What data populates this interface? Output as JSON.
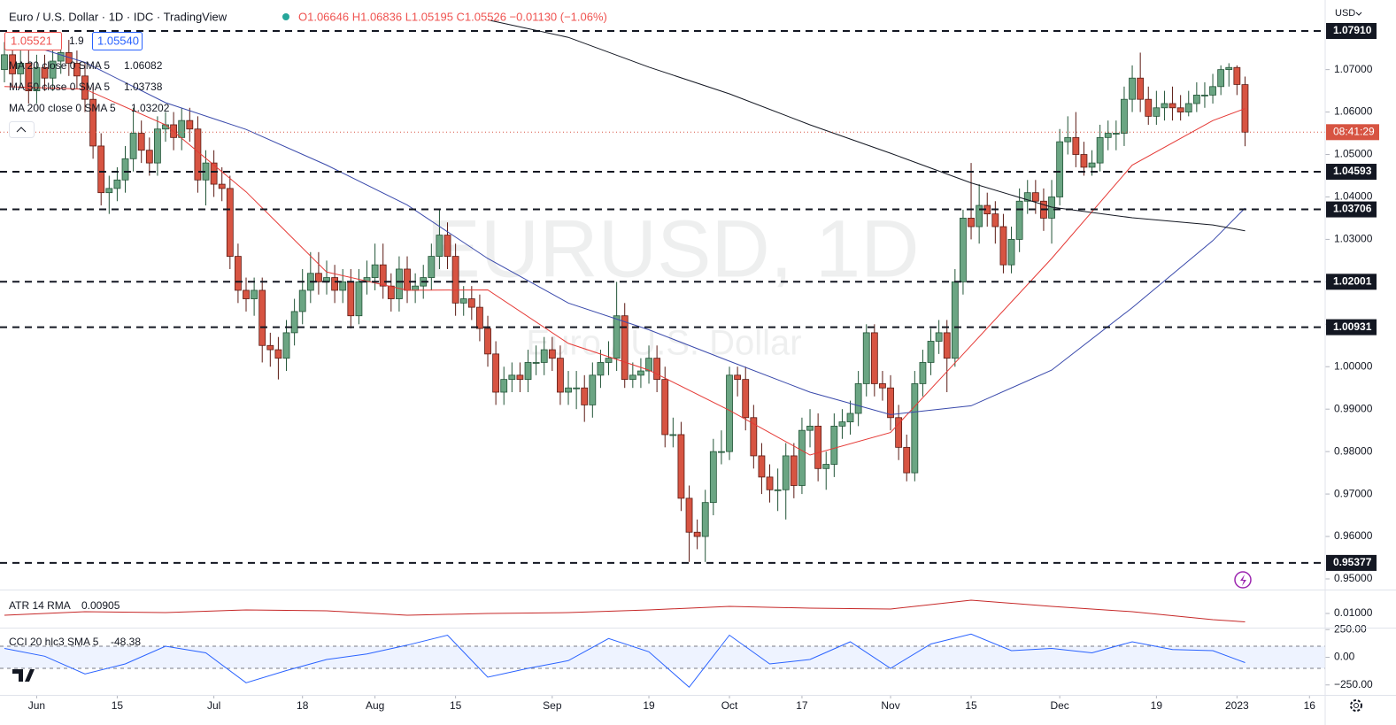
{
  "header": {
    "symbol": "Euro / U.S. Dollar · 1D · IDC · TradingView",
    "ohlc": "O1.06646 H1.06836 L1.05195 C1.05526 −0.01130 (−1.06%)",
    "bid": "1.05521",
    "spread": "1.9",
    "ask": "1.05540",
    "currency": "USD",
    "watermark": "EURUSD, 1D",
    "watermark_sub": "Euro / U.S. Dollar"
  },
  "chart_data": [
    {
      "type": "candlestick",
      "xlim": [
        -0.55,
        163.95
      ],
      "ylim": [
        0.9477,
        1.0864
      ],
      "up_color": "#6ba583",
      "down_color": "#d75442",
      "yticks": [
        {
          "value": 1.07,
          "label": "1.07000"
        },
        {
          "value": 1.06,
          "label": "1.06000"
        },
        {
          "value": 1.05,
          "label": "1.05000"
        },
        {
          "value": 1.04,
          "label": "1.04000"
        },
        {
          "value": 1.03,
          "label": "1.03000"
        },
        {
          "value": 1.02,
          "label": "1.02000"
        },
        {
          "value": 1.01,
          "label": "1.01000"
        },
        {
          "value": 1.0,
          "label": "1.00000"
        },
        {
          "value": 0.99,
          "label": "0.99000"
        },
        {
          "value": 0.98,
          "label": "0.98000"
        },
        {
          "value": 0.97,
          "label": "0.97000"
        },
        {
          "value": 0.96,
          "label": "0.96000"
        },
        {
          "value": 0.95,
          "label": "0.95000"
        }
      ],
      "xticks": [
        {
          "value": 4,
          "label": "Jun"
        },
        {
          "value": 14,
          "label": "15"
        },
        {
          "value": 26,
          "label": "Jul"
        },
        {
          "value": 37,
          "label": "18"
        },
        {
          "value": 46,
          "label": "Aug"
        },
        {
          "value": 56,
          "label": "15"
        },
        {
          "value": 68,
          "label": "Sep"
        },
        {
          "value": 80,
          "label": "19"
        },
        {
          "value": 90,
          "label": "Oct"
        },
        {
          "value": 99,
          "label": "17"
        },
        {
          "value": 110,
          "label": "Nov"
        },
        {
          "value": 120,
          "label": "15"
        },
        {
          "value": 131,
          "label": "Dec"
        },
        {
          "value": 143,
          "label": "19"
        },
        {
          "value": 153,
          "label": "2023"
        },
        {
          "value": 162,
          "label": "16"
        }
      ],
      "levels": [
        {
          "value": 1.0791,
          "label": "1.07910"
        },
        1.04593,
        1.03706,
        1.02001,
        1.00931,
        0.95377
      ],
      "countdown": "08:41:29",
      "open": [
        1.07,
        1.0735,
        1.069,
        1.0715,
        1.065,
        1.0705,
        1.068,
        1.072,
        1.074,
        1.0715,
        1.0685,
        1.063,
        1.052,
        1.041,
        1.042,
        1.044,
        1.049,
        1.055,
        1.051,
        1.048,
        1.056,
        1.057,
        1.054,
        1.058,
        1.056,
        1.044,
        1.048,
        1.043,
        1.042,
        1.026,
        1.018,
        1.016,
        1.018,
        1.005,
        1.004,
        1.002,
        1.008,
        1.013,
        1.018,
        1.022,
        1.02,
        1.021,
        1.018,
        1.02,
        1.012,
        1.02,
        1.021,
        1.024,
        1.019,
        1.016,
        1.023,
        1.018,
        1.019,
        1.021,
        1.026,
        1.031,
        1.026,
        1.015,
        1.016,
        1.014,
        1.009,
        1.003,
        0.994,
        0.997,
        0.998,
        0.997,
        1.001,
        1.001,
        1.004,
        1.002,
        0.994,
        0.995,
        0.995,
        0.991,
        0.998,
        1.001,
        1.002,
        1.012,
        0.997,
        0.998,
        0.999,
        1.002,
        0.997,
        0.984,
        0.984,
        0.969,
        0.961,
        0.96,
        0.968,
        0.98,
        0.98,
        0.998,
        0.997,
        0.988,
        0.979,
        0.974,
        0.971,
        0.971,
        0.979,
        0.972,
        0.985,
        0.986,
        0.976,
        0.977,
        0.986,
        0.987,
        0.989,
        0.996,
        1.008,
        0.996,
        0.995,
        0.988,
        0.981,
        0.975,
        0.996,
        1.001,
        1.006,
        1.008,
        1.002,
        1.02,
        1.035,
        1.033,
        1.038,
        1.036,
        1.033,
        1.024,
        1.03,
        1.039,
        1.041,
        1.039,
        1.035,
        1.04,
        1.053,
        1.054,
        1.05,
        1.047,
        1.048,
        1.054,
        1.055,
        1.055,
        1.063,
        1.068,
        1.063,
        1.059,
        1.061,
        1.062,
        1.061,
        1.06,
        1.062,
        1.064,
        1.064,
        1.066,
        1.07,
        1.0705,
        1.06646
      ],
      "high": [
        1.0765,
        1.0765,
        1.0745,
        1.0745,
        1.0735,
        1.0735,
        1.075,
        1.077,
        1.077,
        1.0745,
        1.0715,
        1.066,
        1.055,
        1.045,
        1.047,
        1.052,
        1.061,
        1.058,
        1.054,
        1.059,
        1.06,
        1.06,
        1.061,
        1.061,
        1.059,
        1.051,
        1.051,
        1.047,
        1.045,
        1.029,
        1.021,
        1.021,
        1.021,
        1.008,
        1.007,
        1.011,
        1.016,
        1.023,
        1.027,
        1.027,
        1.025,
        1.024,
        1.023,
        1.023,
        1.023,
        1.025,
        1.029,
        1.029,
        1.022,
        1.026,
        1.026,
        1.022,
        1.024,
        1.029,
        1.037,
        1.034,
        1.029,
        1.019,
        1.019,
        1.017,
        1.012,
        1.006,
        1.0,
        1.001,
        1.001,
        1.004,
        1.005,
        1.007,
        1.007,
        1.005,
        0.999,
        0.999,
        0.998,
        1.001,
        1.004,
        1.006,
        1.02,
        1.015,
        1.001,
        1.002,
        1.005,
        1.005,
        1.0,
        0.988,
        0.987,
        0.972,
        0.964,
        0.971,
        0.983,
        0.985,
        1.0,
        1.0,
        1.0,
        0.991,
        0.982,
        0.977,
        0.976,
        0.982,
        0.982,
        0.988,
        0.99,
        0.989,
        0.98,
        0.989,
        0.99,
        0.992,
        0.999,
        1.01,
        1.01,
        0.999,
        0.998,
        0.991,
        0.984,
        0.999,
        1.004,
        1.009,
        1.011,
        1.011,
        1.023,
        1.037,
        1.048,
        1.043,
        1.041,
        1.039,
        1.036,
        1.033,
        1.042,
        1.044,
        1.044,
        1.042,
        1.044,
        1.056,
        1.059,
        1.06,
        1.053,
        1.051,
        1.057,
        1.058,
        1.058,
        1.066,
        1.071,
        1.074,
        1.066,
        1.065,
        1.065,
        1.066,
        1.064,
        1.065,
        1.067,
        1.067,
        1.069,
        1.071,
        1.0715,
        1.071,
        1.06836
      ],
      "low": [
        1.067,
        1.066,
        1.066,
        1.062,
        1.062,
        1.065,
        1.065,
        1.069,
        1.0685,
        1.0655,
        1.06,
        1.049,
        1.038,
        1.036,
        1.039,
        1.041,
        1.046,
        1.048,
        1.045,
        1.045,
        1.053,
        1.051,
        1.051,
        1.053,
        1.041,
        1.038,
        1.04,
        1.039,
        1.023,
        1.015,
        1.013,
        1.012,
        1.001,
        1.0,
        0.997,
        0.999,
        1.005,
        1.01,
        1.015,
        1.017,
        1.017,
        1.015,
        1.015,
        1.009,
        1.01,
        1.017,
        1.018,
        1.016,
        1.013,
        1.013,
        1.015,
        1.015,
        1.016,
        1.018,
        1.023,
        1.023,
        1.012,
        1.012,
        1.011,
        1.006,
        1.0,
        0.991,
        0.991,
        0.994,
        0.994,
        0.994,
        0.998,
        0.998,
        0.999,
        0.991,
        0.991,
        0.99,
        0.987,
        0.988,
        0.995,
        0.998,
        0.999,
        0.995,
        0.995,
        0.995,
        0.996,
        0.994,
        0.981,
        0.981,
        0.966,
        0.954,
        0.957,
        0.954,
        0.965,
        0.977,
        0.978,
        0.993,
        0.985,
        0.976,
        0.97,
        0.968,
        0.966,
        0.964,
        0.969,
        0.97,
        0.981,
        0.973,
        0.971,
        0.974,
        0.983,
        0.984,
        0.986,
        0.993,
        0.993,
        0.992,
        0.985,
        0.978,
        0.973,
        0.973,
        0.993,
        0.998,
        1.003,
        0.994,
        1.0,
        1.017,
        1.03,
        1.029,
        1.033,
        1.029,
        1.022,
        1.022,
        1.027,
        1.036,
        1.036,
        1.032,
        1.029,
        1.038,
        1.05,
        1.047,
        1.045,
        1.045,
        1.046,
        1.051,
        1.051,
        1.052,
        1.06,
        1.06,
        1.057,
        1.057,
        1.058,
        1.058,
        1.058,
        1.059,
        1.06,
        1.061,
        1.062,
        1.064,
        1.066,
        1.064,
        1.05195
      ],
      "close": [
        1.0735,
        1.069,
        1.0715,
        1.065,
        1.0705,
        1.068,
        1.072,
        1.074,
        1.0715,
        1.0685,
        1.063,
        1.052,
        1.041,
        1.042,
        1.044,
        1.049,
        1.055,
        1.051,
        1.048,
        1.056,
        1.057,
        1.054,
        1.058,
        1.056,
        1.044,
        1.048,
        1.043,
        1.042,
        1.026,
        1.018,
        1.016,
        1.018,
        1.005,
        1.004,
        1.002,
        1.008,
        1.013,
        1.018,
        1.022,
        1.02,
        1.021,
        1.018,
        1.02,
        1.012,
        1.02,
        1.021,
        1.024,
        1.019,
        1.016,
        1.023,
        1.018,
        1.019,
        1.021,
        1.026,
        1.031,
        1.026,
        1.015,
        1.016,
        1.014,
        1.009,
        1.003,
        0.994,
        0.997,
        0.998,
        0.997,
        1.001,
        1.001,
        1.004,
        1.002,
        0.994,
        0.995,
        0.995,
        0.991,
        0.998,
        1.001,
        1.002,
        1.012,
        0.997,
        0.998,
        0.999,
        1.002,
        0.997,
        0.984,
        0.984,
        0.969,
        0.961,
        0.96,
        0.968,
        0.98,
        0.98,
        0.998,
        0.997,
        0.988,
        0.979,
        0.974,
        0.971,
        0.971,
        0.979,
        0.972,
        0.985,
        0.986,
        0.976,
        0.977,
        0.986,
        0.987,
        0.989,
        0.996,
        1.008,
        0.996,
        0.995,
        0.988,
        0.981,
        0.975,
        0.996,
        1.001,
        1.006,
        1.008,
        1.002,
        1.02,
        1.035,
        1.033,
        1.038,
        1.036,
        1.033,
        1.024,
        1.03,
        1.039,
        1.041,
        1.039,
        1.035,
        1.04,
        1.053,
        1.054,
        1.05,
        1.047,
        1.048,
        1.054,
        1.055,
        1.055,
        1.063,
        1.068,
        1.063,
        1.059,
        1.061,
        1.062,
        1.061,
        1.06,
        1.062,
        1.064,
        1.064,
        1.066,
        1.07,
        1.0705,
        1.0665,
        1.05526
      ],
      "series": [
        {
          "name": "MA 20 close 0 SMA 5",
          "color": "#e53935",
          "x": [
            0,
            10,
            20,
            30,
            40,
            50,
            60,
            70,
            80,
            90,
            100,
            110,
            120,
            130,
            140,
            150,
            154
          ],
          "values": [
            1.066,
            1.0654,
            1.057,
            1.0412,
            1.0223,
            1.018,
            1.0181,
            1.0055,
            0.9992,
            0.9897,
            0.9792,
            0.9845,
            1.005,
            1.0255,
            1.0475,
            1.058,
            1.06082
          ]
        },
        {
          "name": "MA 50 close 0 SMA 5",
          "color": "#3949ab",
          "x": [
            0,
            10,
            20,
            30,
            40,
            50,
            60,
            70,
            80,
            90,
            100,
            110,
            120,
            130,
            140,
            150,
            154
          ],
          "values": [
            1.0776,
            1.0717,
            1.0622,
            1.0559,
            1.0475,
            1.0381,
            1.0255,
            1.015,
            1.0087,
            1.0013,
            0.994,
            0.9887,
            0.9908,
            0.9992,
            1.0139,
            1.0297,
            1.03738
          ]
        },
        {
          "name": "MA 200 close 0 SMA 5",
          "color": "#131722",
          "x": [
            60,
            70,
            80,
            90,
            100,
            110,
            120,
            130,
            140,
            150,
            154
          ],
          "values": [
            1.0817,
            1.0776,
            1.0706,
            1.0643,
            1.057,
            1.0503,
            1.0433,
            1.0376,
            1.0351,
            1.0334,
            1.03202
          ]
        }
      ]
    },
    {
      "type": "line",
      "title": "ATR 14 RMA",
      "color": "#c62828",
      "ylim": [
        0.0085,
        0.0125
      ],
      "yticks": [
        {
          "value": 0.01,
          "label": "0.01000"
        }
      ],
      "x": [
        0,
        10,
        20,
        30,
        40,
        50,
        60,
        70,
        80,
        90,
        100,
        110,
        120,
        130,
        140,
        150,
        154
      ],
      "values": [
        0.0098,
        0.0102,
        0.0101,
        0.0104,
        0.0103,
        0.0098,
        0.01,
        0.0101,
        0.0104,
        0.0108,
        0.0106,
        0.0105,
        0.0115,
        0.0108,
        0.0102,
        0.0093,
        0.00905
      ]
    },
    {
      "type": "line",
      "title": "CCI 20 hlc3 SMA 5",
      "color": "#2962ff",
      "ylim": [
        -340,
        260
      ],
      "band": [
        -100,
        100
      ],
      "yticks": [
        {
          "value": 250,
          "label": "250.00"
        },
        {
          "value": 0,
          "label": "0.00"
        },
        {
          "value": -250,
          "label": "−250.00"
        }
      ],
      "x": [
        0,
        5,
        10,
        15,
        20,
        25,
        30,
        35,
        40,
        45,
        50,
        55,
        60,
        65,
        70,
        75,
        80,
        85,
        90,
        95,
        100,
        105,
        110,
        115,
        120,
        125,
        130,
        135,
        140,
        145,
        150,
        154
      ],
      "values": [
        80,
        10,
        -150,
        -60,
        100,
        40,
        -230,
        -120,
        -20,
        30,
        110,
        200,
        -180,
        -100,
        -30,
        170,
        50,
        -270,
        200,
        -60,
        -20,
        140,
        -100,
        120,
        210,
        60,
        80,
        40,
        140,
        70,
        60,
        -48.38
      ]
    }
  ]
}
